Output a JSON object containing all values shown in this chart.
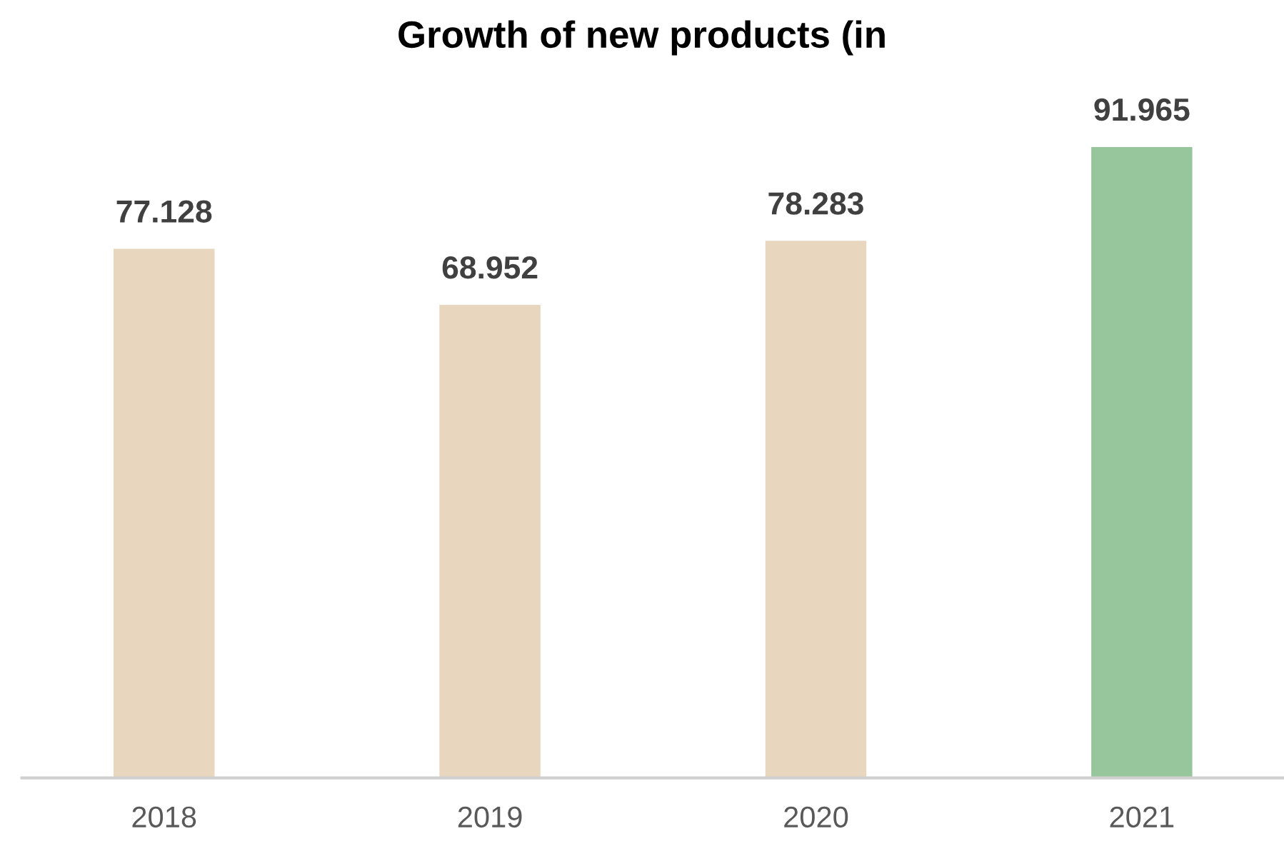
{
  "chart_data": {
    "type": "bar",
    "title": "Growth of new products (in",
    "categories": [
      "2018",
      "2019",
      "2020",
      "2021"
    ],
    "values": [
      77.128,
      68.952,
      78.283,
      91.965
    ],
    "colors": [
      "#e8d6bf",
      "#e8d6bf",
      "#e8d6bf",
      "#98c69c"
    ],
    "value_labels": [
      "77.128",
      "68.952",
      "78.283",
      "91.965"
    ],
    "grid": false,
    "legend": false
  }
}
